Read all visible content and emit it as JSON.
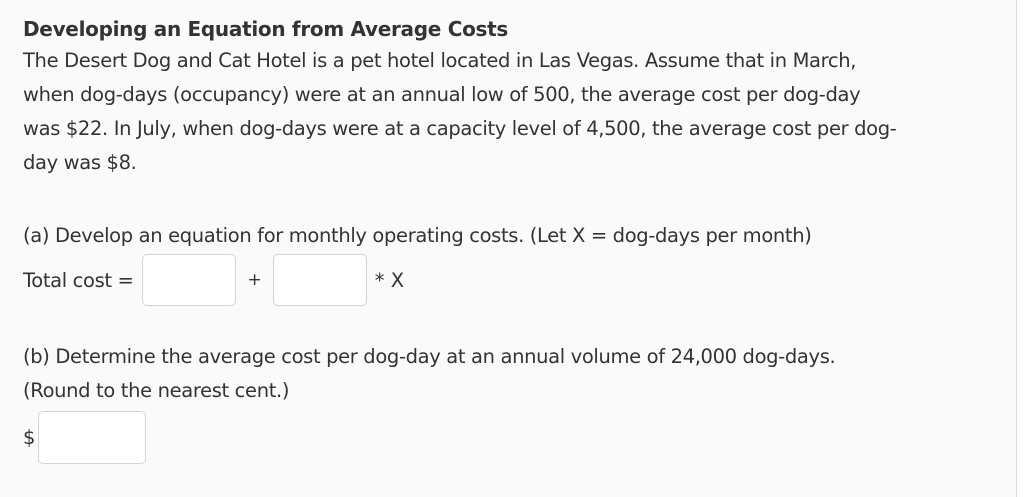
{
  "problem": {
    "title": "Developing an Equation from Average Costs",
    "paragraph_lines": [
      "The Desert Dog and Cat Hotel is a pet hotel located in Las Vegas. Assume that in March,",
      "when dog-days (occupancy) were at an annual low of 500, the average cost per dog-day",
      "was $22. In July, when dog-days were at a capacity level of 4,500, the average cost per dog-",
      "day was $8."
    ]
  },
  "part_a": {
    "question": "(a) Develop an equation for monthly operating costs. (Let X = dog-days per month)",
    "equation_label": "Total cost =",
    "fixed_cost_input": {
      "value": "",
      "placeholder": ""
    },
    "operator_plus": "+",
    "variable_cost_input": {
      "value": "",
      "placeholder": ""
    },
    "times_x": "* X"
  },
  "part_b": {
    "question_line1": "(b) Determine the average cost per dog-day at an annual volume of 24,000 dog-days.",
    "question_line2": "(Round to the nearest cent.)",
    "currency_symbol": "$",
    "answer_input": {
      "value": "",
      "placeholder": ""
    }
  },
  "colors": {
    "background": "#fafafa",
    "text": "#333333",
    "input_border": "#d4d4d4",
    "input_background": "#ffffff"
  }
}
